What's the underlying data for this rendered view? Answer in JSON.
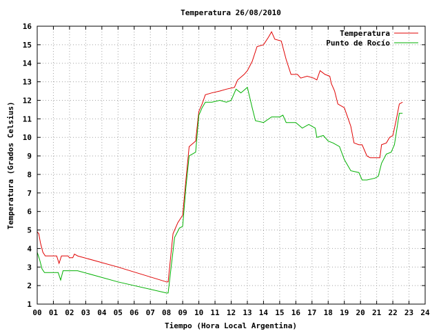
{
  "chart_data": {
    "type": "line",
    "title": "Temperatura 26/08/2010",
    "xlabel": "Tiempo (Hora Local Argentina)",
    "ylabel": "Temperatura (Grados Celsius)",
    "xlim": [
      0,
      24
    ],
    "ylim": [
      1,
      16
    ],
    "xticks": [
      "00",
      "01",
      "02",
      "03",
      "04",
      "05",
      "06",
      "07",
      "08",
      "09",
      "10",
      "11",
      "12",
      "13",
      "14",
      "15",
      "16",
      "17",
      "18",
      "19",
      "20",
      "21",
      "22",
      "23",
      "24"
    ],
    "yticks": [
      "1",
      "2",
      "3",
      "4",
      "5",
      "6",
      "7",
      "8",
      "9",
      "10",
      "11",
      "12",
      "13",
      "14",
      "15",
      "16"
    ],
    "grid": true,
    "legend_position": "top-right",
    "series": [
      {
        "name": "Temperatura",
        "color": "#e00000",
        "points": [
          [
            0.0,
            4.9
          ],
          [
            0.1,
            4.8
          ],
          [
            0.2,
            4.3
          ],
          [
            0.35,
            3.8
          ],
          [
            0.5,
            3.6
          ],
          [
            0.8,
            3.6
          ],
          [
            1.2,
            3.6
          ],
          [
            1.35,
            3.2
          ],
          [
            1.5,
            3.6
          ],
          [
            1.9,
            3.6
          ],
          [
            2.0,
            3.5
          ],
          [
            2.2,
            3.5
          ],
          [
            2.3,
            3.7
          ],
          [
            2.5,
            3.6
          ],
          [
            5.0,
            3.0
          ],
          [
            8.0,
            2.2
          ],
          [
            8.1,
            2.2
          ],
          [
            8.4,
            4.8
          ],
          [
            8.7,
            5.4
          ],
          [
            9.0,
            5.8
          ],
          [
            9.2,
            7.7
          ],
          [
            9.4,
            9.5
          ],
          [
            9.8,
            9.8
          ],
          [
            10.0,
            11.4
          ],
          [
            10.2,
            11.8
          ],
          [
            10.4,
            12.3
          ],
          [
            10.8,
            12.4
          ],
          [
            11.3,
            12.5
          ],
          [
            11.7,
            12.6
          ],
          [
            12.2,
            12.7
          ],
          [
            12.4,
            13.1
          ],
          [
            12.8,
            13.4
          ],
          [
            13.0,
            13.6
          ],
          [
            13.3,
            14.1
          ],
          [
            13.6,
            14.9
          ],
          [
            14.0,
            15.0
          ],
          [
            14.3,
            15.4
          ],
          [
            14.5,
            15.7
          ],
          [
            14.7,
            15.3
          ],
          [
            15.1,
            15.2
          ],
          [
            15.4,
            14.2
          ],
          [
            15.7,
            13.4
          ],
          [
            16.1,
            13.4
          ],
          [
            16.3,
            13.2
          ],
          [
            16.7,
            13.3
          ],
          [
            17.1,
            13.2
          ],
          [
            17.3,
            13.1
          ],
          [
            17.5,
            13.6
          ],
          [
            17.8,
            13.4
          ],
          [
            18.1,
            13.3
          ],
          [
            18.2,
            12.9
          ],
          [
            18.4,
            12.5
          ],
          [
            18.6,
            11.8
          ],
          [
            19.0,
            11.6
          ],
          [
            19.4,
            10.6
          ],
          [
            19.6,
            9.7
          ],
          [
            19.9,
            9.6
          ],
          [
            20.1,
            9.6
          ],
          [
            20.4,
            9.0
          ],
          [
            20.6,
            8.9
          ],
          [
            21.2,
            8.9
          ],
          [
            21.3,
            9.6
          ],
          [
            21.6,
            9.7
          ],
          [
            21.8,
            10.0
          ],
          [
            22.0,
            10.1
          ],
          [
            22.2,
            10.9
          ],
          [
            22.4,
            11.8
          ],
          [
            22.6,
            11.9
          ]
        ]
      },
      {
        "name": "Punto de Rocío",
        "color": "#00b000",
        "points": [
          [
            0.0,
            3.8
          ],
          [
            0.15,
            3.4
          ],
          [
            0.3,
            2.9
          ],
          [
            0.45,
            2.7
          ],
          [
            0.8,
            2.7
          ],
          [
            1.3,
            2.7
          ],
          [
            1.45,
            2.3
          ],
          [
            1.6,
            2.8
          ],
          [
            1.9,
            2.8
          ],
          [
            2.2,
            2.8
          ],
          [
            2.5,
            2.8
          ],
          [
            5.0,
            2.2
          ],
          [
            8.0,
            1.6
          ],
          [
            8.1,
            1.6
          ],
          [
            8.5,
            4.6
          ],
          [
            8.8,
            5.1
          ],
          [
            9.0,
            5.2
          ],
          [
            9.2,
            7.3
          ],
          [
            9.4,
            9.0
          ],
          [
            9.8,
            9.2
          ],
          [
            10.0,
            11.2
          ],
          [
            10.2,
            11.6
          ],
          [
            10.4,
            11.9
          ],
          [
            10.8,
            11.9
          ],
          [
            11.3,
            12.0
          ],
          [
            11.7,
            11.9
          ],
          [
            12.0,
            12.0
          ],
          [
            12.3,
            12.6
          ],
          [
            12.6,
            12.4
          ],
          [
            13.0,
            12.7
          ],
          [
            13.3,
            11.6
          ],
          [
            13.5,
            10.9
          ],
          [
            14.0,
            10.8
          ],
          [
            14.5,
            11.1
          ],
          [
            15.0,
            11.1
          ],
          [
            15.2,
            11.2
          ],
          [
            15.4,
            10.8
          ],
          [
            16.0,
            10.8
          ],
          [
            16.4,
            10.5
          ],
          [
            16.8,
            10.7
          ],
          [
            17.2,
            10.5
          ],
          [
            17.3,
            10.0
          ],
          [
            17.7,
            10.1
          ],
          [
            18.0,
            9.8
          ],
          [
            18.3,
            9.7
          ],
          [
            18.7,
            9.5
          ],
          [
            19.0,
            8.8
          ],
          [
            19.4,
            8.2
          ],
          [
            19.9,
            8.1
          ],
          [
            20.1,
            7.7
          ],
          [
            20.4,
            7.7
          ],
          [
            20.9,
            7.8
          ],
          [
            21.1,
            7.9
          ],
          [
            21.3,
            8.6
          ],
          [
            21.6,
            9.1
          ],
          [
            21.9,
            9.2
          ],
          [
            22.1,
            9.6
          ],
          [
            22.4,
            11.3
          ],
          [
            22.6,
            11.3
          ]
        ]
      }
    ]
  }
}
